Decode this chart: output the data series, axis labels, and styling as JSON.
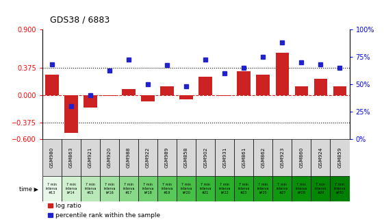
{
  "title": "GDS38 / 6883",
  "categories": [
    "GSM980",
    "GSM863",
    "GSM921",
    "GSM920",
    "GSM988",
    "GSM922",
    "GSM989",
    "GSM858",
    "GSM902",
    "GSM931",
    "GSM861",
    "GSM862",
    "GSM923",
    "GSM860",
    "GSM924",
    "GSM859"
  ],
  "time_labels": [
    "7 min\ninterva\n#13",
    "7 min\ninterva\nl#14",
    "7 min\ninterva\n#15",
    "7 min\ninterva\nl#16",
    "7 min\ninterva\n#17",
    "7 min\ninterva\nl#18",
    "7 min\ninterva\n#19",
    "7 min\ninterva\nl#20",
    "7 min\ninterva\n#21",
    "7 min\ninterva\nl#22",
    "7 min\ninterva\n#23",
    "7 min\ninterva\nl#25",
    "7 min\ninterva\n#27",
    "7 min\ninterva\nl#28",
    "7 min\ninterva\n#29",
    "7 min\ninterva\nl#30"
  ],
  "log_ratio": [
    0.28,
    -0.52,
    -0.17,
    -0.01,
    0.08,
    -0.09,
    0.12,
    -0.06,
    0.25,
    -0.01,
    0.32,
    0.28,
    0.58,
    0.12,
    0.22,
    0.12
  ],
  "percentile": [
    68,
    30,
    40,
    62,
    72,
    50,
    67,
    48,
    72,
    60,
    65,
    75,
    88,
    70,
    68,
    65
  ],
  "bar_color": "#cc2222",
  "dot_color": "#2222cc",
  "ylim_left": [
    -0.6,
    0.9
  ],
  "ylim_right": [
    0,
    100
  ],
  "yticks_left": [
    -0.6,
    -0.375,
    0,
    0.375,
    0.9
  ],
  "yticks_right": [
    0,
    25,
    50,
    75,
    100
  ],
  "hlines": [
    0.375,
    -0.375
  ],
  "background_color": "#ffffff",
  "cell_bg_gray": "#d8d8d8",
  "time_colors": [
    "#e8f8e8",
    "#d0f0d0",
    "#b8e8b8",
    "#a0e0a0",
    "#88d888",
    "#70d070",
    "#58c858",
    "#48c048",
    "#38b838",
    "#28b028",
    "#20a820",
    "#18a018",
    "#109810",
    "#089008",
    "#048804",
    "#008000"
  ],
  "legend_label_bar": "log ratio",
  "legend_label_dot": "percentile rank within the sample"
}
